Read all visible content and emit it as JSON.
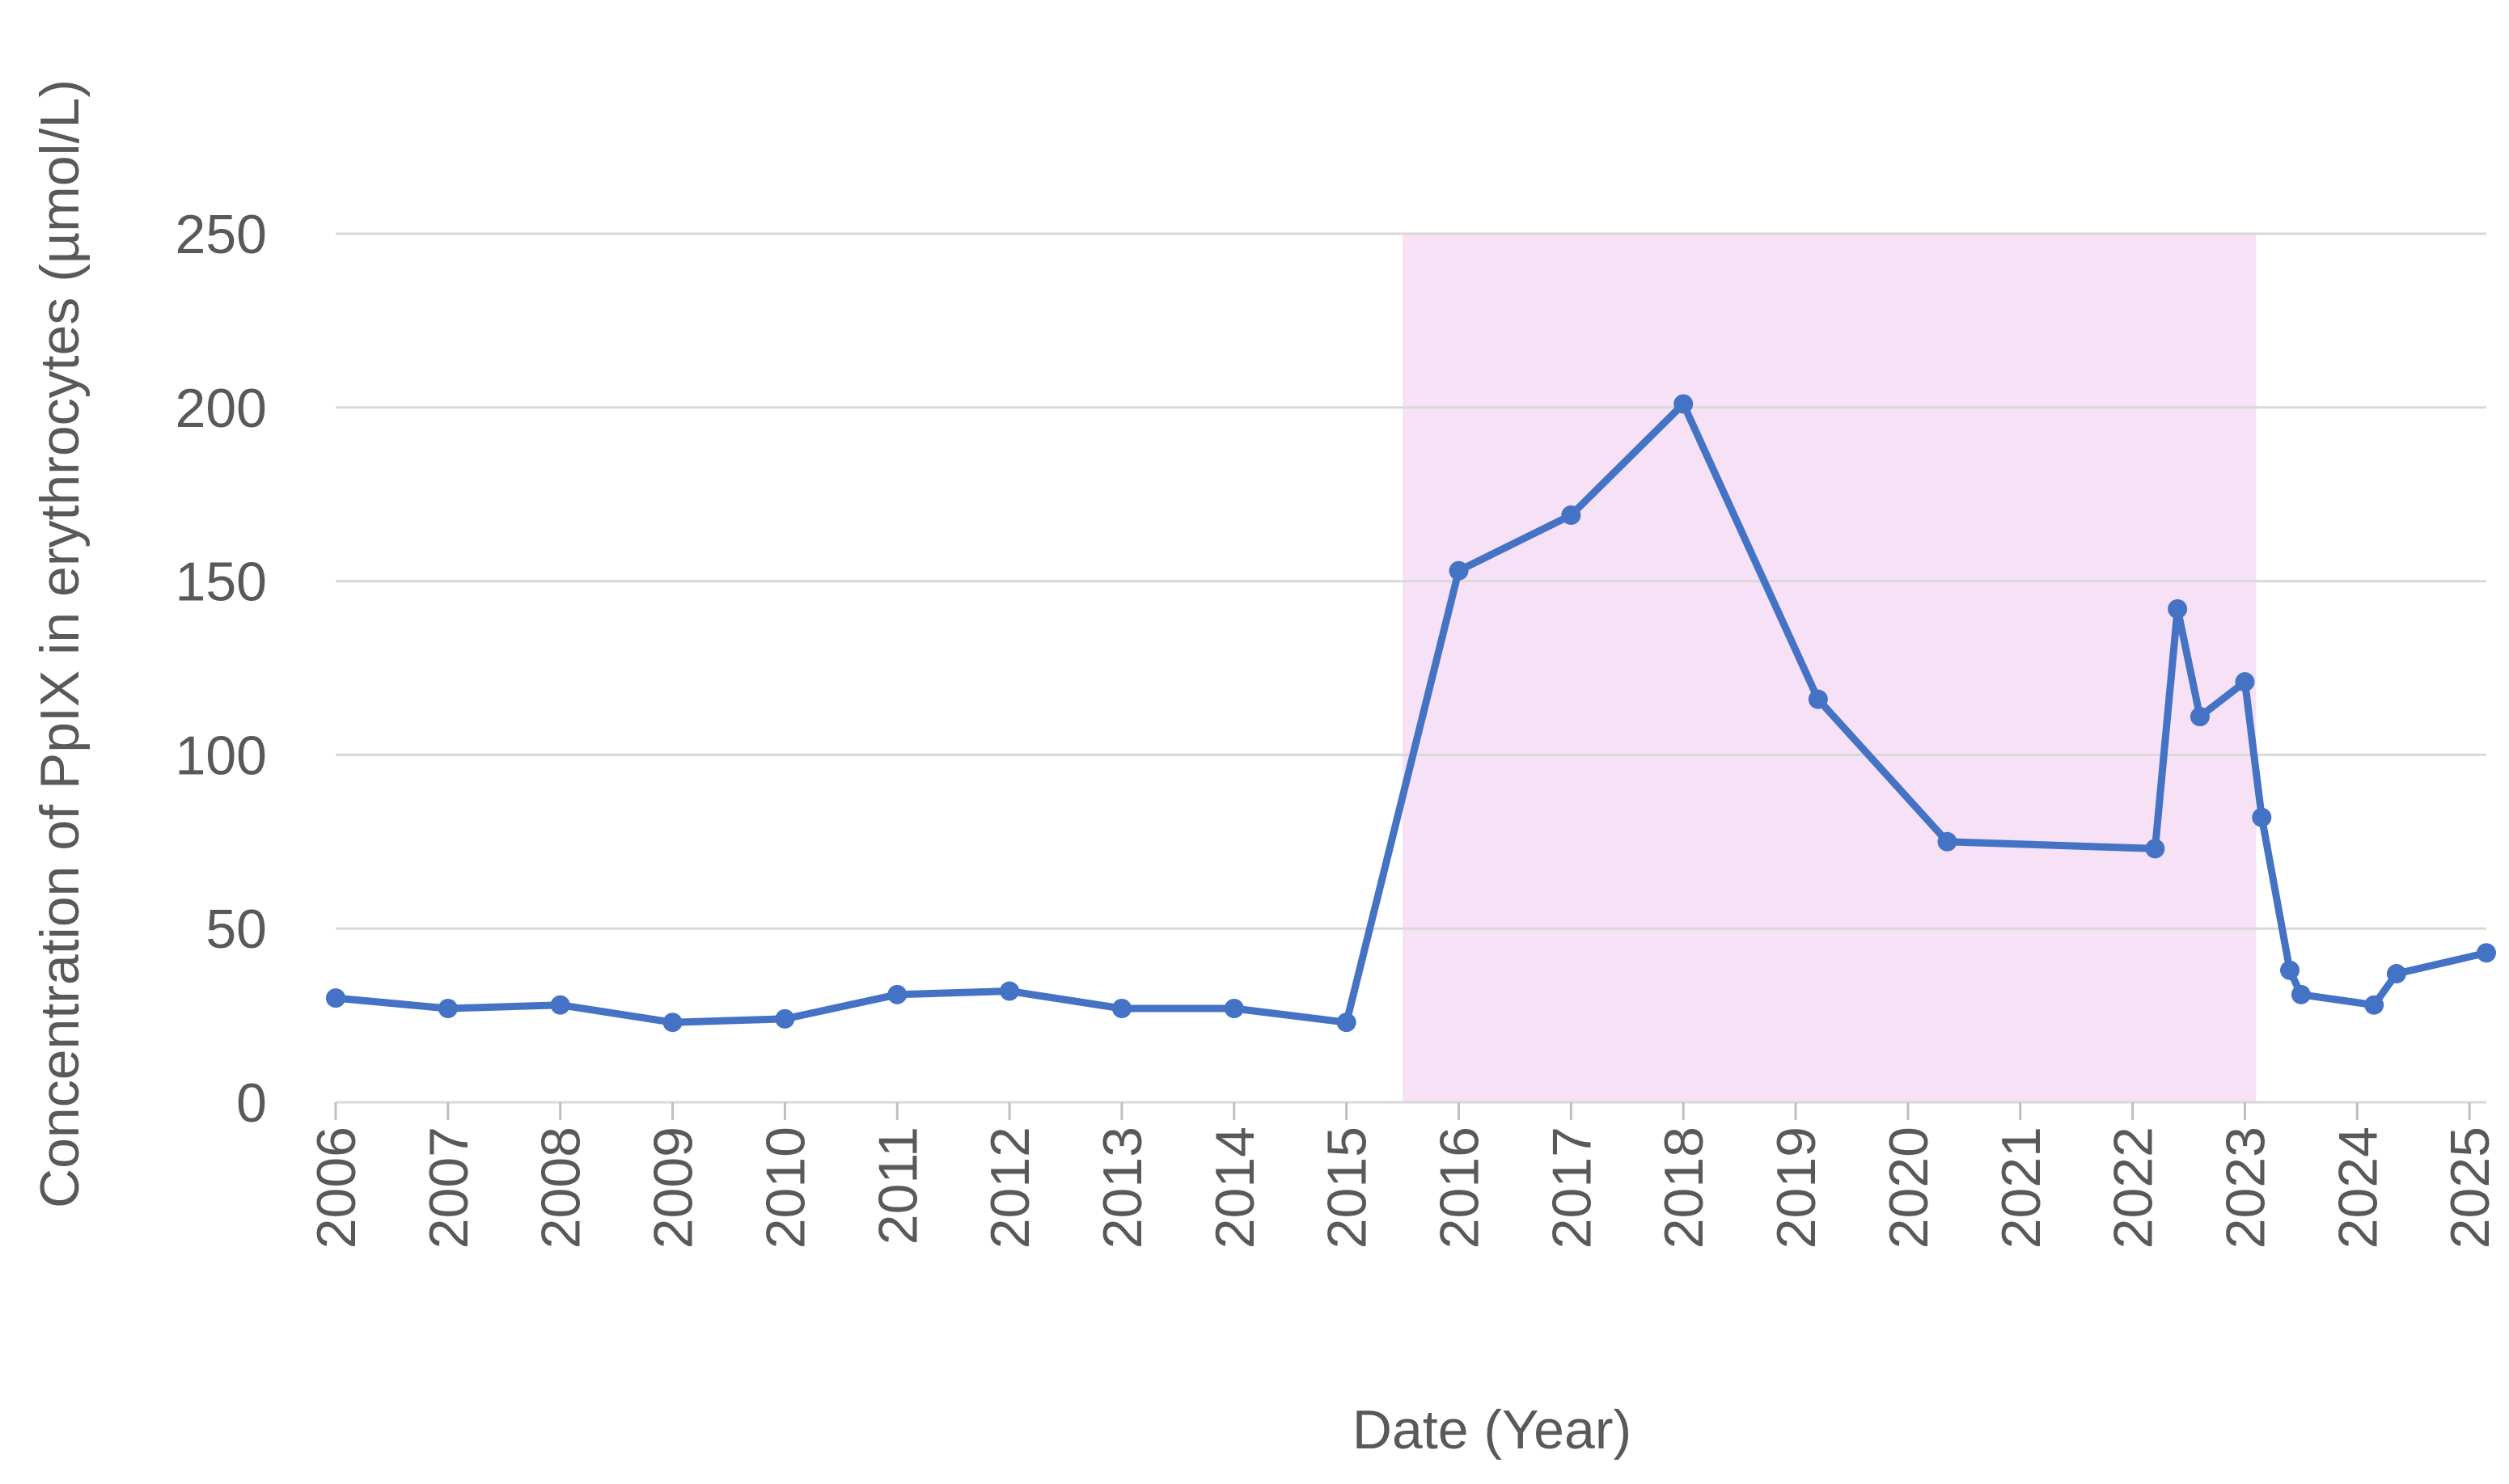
{
  "chart_data": {
    "type": "line",
    "title": "",
    "xlabel": "Date (Year)",
    "ylabel": "Concentration of PpIX in erythrocytes (µmol/L)",
    "x_tick_labels": [
      "2006",
      "2007",
      "2008",
      "2009",
      "2010",
      "2011",
      "2012",
      "2013",
      "2014",
      "2015",
      "2016",
      "2017",
      "2018",
      "2019",
      "2020",
      "2021",
      "2022",
      "2023",
      "2024",
      "2025"
    ],
    "xlim": [
      2006,
      2025.15
    ],
    "y_tick_labels": [
      "0",
      "50",
      "100",
      "150",
      "200",
      "250"
    ],
    "ylim": [
      0,
      250
    ],
    "grid": "horizontal",
    "legend": "none",
    "highlight_region": {
      "x_start": 2015.5,
      "x_end": 2023.1,
      "color": "#f6e1f6"
    },
    "series": [
      {
        "color": "#4472c4",
        "points": [
          {
            "x": 2006.0,
            "y": 30
          },
          {
            "x": 2007.0,
            "y": 27
          },
          {
            "x": 2008.0,
            "y": 28
          },
          {
            "x": 2009.0,
            "y": 23
          },
          {
            "x": 2010.0,
            "y": 24
          },
          {
            "x": 2011.0,
            "y": 31
          },
          {
            "x": 2012.0,
            "y": 32
          },
          {
            "x": 2013.0,
            "y": 27
          },
          {
            "x": 2014.0,
            "y": 27
          },
          {
            "x": 2015.0,
            "y": 23
          },
          {
            "x": 2016.0,
            "y": 153
          },
          {
            "x": 2017.0,
            "y": 169
          },
          {
            "x": 2018.0,
            "y": 201
          },
          {
            "x": 2019.2,
            "y": 116
          },
          {
            "x": 2020.35,
            "y": 75
          },
          {
            "x": 2022.2,
            "y": 73
          },
          {
            "x": 2022.4,
            "y": 142
          },
          {
            "x": 2022.6,
            "y": 111
          },
          {
            "x": 2023.0,
            "y": 121
          },
          {
            "x": 2023.15,
            "y": 82
          },
          {
            "x": 2023.4,
            "y": 38
          },
          {
            "x": 2023.5,
            "y": 31
          },
          {
            "x": 2024.15,
            "y": 28
          },
          {
            "x": 2024.35,
            "y": 37
          },
          {
            "x": 2025.15,
            "y": 43
          }
        ]
      }
    ]
  }
}
